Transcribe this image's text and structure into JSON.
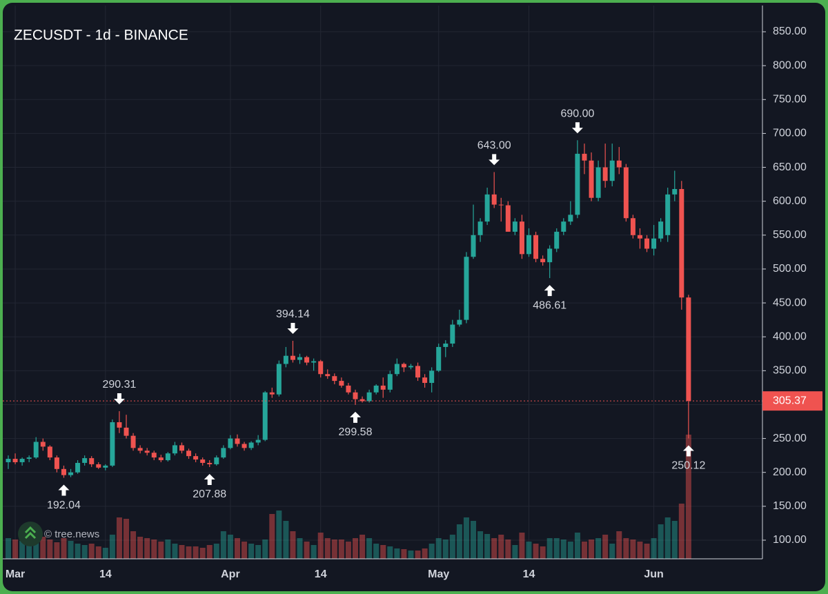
{
  "chart_data": {
    "type": "candlestick",
    "title": "ZECUSDT - 1d - BINANCE",
    "watermark": "© tree.news",
    "categories": [
      null,
      "Mar",
      null,
      null,
      null,
      null,
      null,
      null,
      null,
      null,
      null,
      null,
      null,
      null,
      "14",
      null,
      null,
      null,
      null,
      null,
      null,
      null,
      null,
      null,
      null,
      null,
      null,
      null,
      null,
      null,
      null,
      null,
      "Apr",
      null,
      null,
      null,
      null,
      null,
      null,
      null,
      null,
      null,
      null,
      null,
      null,
      "14",
      null,
      null,
      null,
      null,
      null,
      null,
      null,
      null,
      null,
      null,
      null,
      null,
      null,
      null,
      null,
      null,
      "May",
      null,
      null,
      null,
      null,
      null,
      null,
      null,
      null,
      null,
      null,
      null,
      null,
      "14",
      null,
      null,
      null,
      null,
      null,
      null,
      null,
      null,
      null,
      null,
      null,
      null,
      null,
      null,
      null,
      null,
      null,
      "Jun",
      null,
      null,
      null,
      null,
      null
    ],
    "open": [
      215,
      220,
      215,
      220,
      222,
      245,
      238,
      222,
      205,
      196,
      200,
      214,
      221,
      212,
      207,
      210,
      274,
      266,
      254,
      236,
      232,
      229,
      222,
      218,
      228,
      240,
      232,
      224,
      219,
      214,
      212,
      222,
      236,
      250,
      242,
      236,
      244,
      248,
      318,
      315,
      360,
      372,
      366,
      370,
      362,
      364,
      345,
      342,
      335,
      328,
      318,
      308,
      305,
      318,
      328,
      322,
      345,
      360,
      355,
      357,
      340,
      332,
      350,
      385,
      390,
      418,
      425,
      518,
      550,
      570,
      610,
      595,
      594,
      555,
      570,
      522,
      550,
      515,
      510,
      530,
      555,
      570,
      580,
      670,
      660,
      605,
      650,
      630,
      660,
      650,
      575,
      550,
      545,
      530,
      545,
      550,
      610,
      618,
      458
    ],
    "high": [
      225,
      228,
      222,
      225,
      252,
      250,
      240,
      225,
      210,
      205,
      218,
      225,
      224,
      215,
      212,
      278,
      290.31,
      285,
      258,
      240,
      236,
      232,
      226,
      230,
      245,
      244,
      235,
      228,
      222,
      218,
      225,
      240,
      255,
      256,
      245,
      246,
      255,
      320,
      325,
      365,
      385,
      394.14,
      375,
      372,
      368,
      366,
      352,
      346,
      340,
      332,
      322,
      312,
      322,
      330,
      340,
      350,
      368,
      362,
      360,
      362,
      345,
      355,
      390,
      395,
      425,
      440,
      525,
      595,
      575,
      620,
      643,
      605,
      600,
      575,
      580,
      560,
      555,
      520,
      535,
      560,
      575,
      600,
      690,
      685,
      672,
      660,
      685,
      685,
      680,
      655,
      580,
      560,
      550,
      565,
      575,
      620,
      645,
      630,
      462
    ],
    "low": [
      205,
      212,
      210,
      215,
      220,
      232,
      218,
      200,
      192.04,
      193,
      198,
      210,
      208,
      205,
      203,
      208,
      258,
      250,
      232,
      228,
      225,
      218,
      215,
      216,
      225,
      228,
      220,
      215,
      210,
      207.88,
      210,
      220,
      234,
      238,
      232,
      233,
      240,
      246,
      310,
      312,
      355,
      362,
      360,
      358,
      350,
      340,
      338,
      330,
      325,
      315,
      299.58,
      303,
      303,
      315,
      310,
      318,
      342,
      348,
      352,
      335,
      325,
      318,
      348,
      370,
      385,
      415,
      420,
      515,
      540,
      565,
      590,
      570,
      555,
      550,
      515,
      518,
      510,
      505,
      486.61,
      525,
      550,
      565,
      575,
      640,
      600,
      600,
      620,
      622,
      640,
      570,
      545,
      530,
      525,
      520,
      540,
      540,
      600,
      440,
      250.12
    ],
    "close": [
      220,
      215,
      220,
      222,
      245,
      238,
      222,
      205,
      196,
      200,
      214,
      221,
      212,
      207,
      210,
      274,
      266,
      254,
      236,
      232,
      229,
      222,
      218,
      228,
      240,
      232,
      224,
      219,
      214,
      212,
      222,
      236,
      250,
      242,
      236,
      244,
      248,
      318,
      315,
      360,
      372,
      366,
      370,
      362,
      364,
      345,
      342,
      335,
      328,
      318,
      308,
      305,
      318,
      328,
      322,
      345,
      360,
      355,
      357,
      340,
      332,
      350,
      385,
      390,
      418,
      425,
      518,
      550,
      570,
      610,
      595,
      594,
      555,
      570,
      522,
      550,
      515,
      510,
      530,
      555,
      570,
      580,
      670,
      660,
      605,
      650,
      630,
      660,
      650,
      575,
      550,
      545,
      530,
      545,
      570,
      610,
      618,
      458,
      305.37
    ],
    "volume": [
      30,
      28,
      26,
      30,
      45,
      32,
      28,
      24,
      30,
      26,
      22,
      20,
      22,
      18,
      16,
      35,
      60,
      58,
      40,
      32,
      30,
      28,
      25,
      28,
      22,
      20,
      18,
      18,
      16,
      20,
      22,
      40,
      35,
      30,
      25,
      22,
      20,
      28,
      65,
      70,
      55,
      40,
      30,
      25,
      20,
      38,
      30,
      28,
      28,
      25,
      30,
      35,
      30,
      22,
      20,
      18,
      15,
      14,
      12,
      12,
      15,
      22,
      30,
      28,
      35,
      50,
      60,
      55,
      40,
      36,
      30,
      35,
      28,
      20,
      38,
      25,
      22,
      18,
      30,
      30,
      28,
      25,
      38,
      25,
      28,
      30,
      35,
      22,
      40,
      30,
      28,
      25,
      22,
      30,
      50,
      60,
      55,
      80,
      180
    ],
    "up_color": "#26a69a",
    "down_color": "#ef5350",
    "ylim": [
      72.5,
      888.7
    ],
    "yticks": [
      {
        "value": 100,
        "label": "100.00"
      },
      {
        "value": 150,
        "label": "150.00"
      },
      {
        "value": 200,
        "label": "200.00"
      },
      {
        "value": 250,
        "label": "250.00"
      },
      {
        "value": 300,
        "label": "300.00"
      },
      {
        "value": 350,
        "label": "350.00"
      },
      {
        "value": 400,
        "label": "400.00"
      },
      {
        "value": 450,
        "label": "450.00"
      },
      {
        "value": 500,
        "label": "500.00"
      },
      {
        "value": 550,
        "label": "550.00"
      },
      {
        "value": 600,
        "label": "600.00"
      },
      {
        "value": 650,
        "label": "650.00"
      },
      {
        "value": 700,
        "label": "700.00"
      },
      {
        "value": 750,
        "label": "750.00"
      },
      {
        "value": 800,
        "label": "800.00"
      },
      {
        "value": 850,
        "label": "850.00"
      }
    ],
    "grid": true,
    "last_price": {
      "value": 305.37,
      "label": "305.37"
    },
    "annotations": [
      {
        "kind": "low",
        "value": 192.04,
        "label": "192.04"
      },
      {
        "kind": "high",
        "value": 290.31,
        "label": "290.31"
      },
      {
        "kind": "low",
        "value": 207.88,
        "label": "207.88"
      },
      {
        "kind": "high",
        "value": 394.14,
        "label": "394.14"
      },
      {
        "kind": "low",
        "value": 299.58,
        "label": "299.58"
      },
      {
        "kind": "high",
        "value": 643,
        "label": "643.00"
      },
      {
        "kind": "low",
        "value": 486.61,
        "label": "486.61"
      },
      {
        "kind": "high",
        "value": 690,
        "label": "690.00"
      },
      {
        "kind": "low",
        "value": 250.12,
        "label": "250.12"
      }
    ]
  }
}
